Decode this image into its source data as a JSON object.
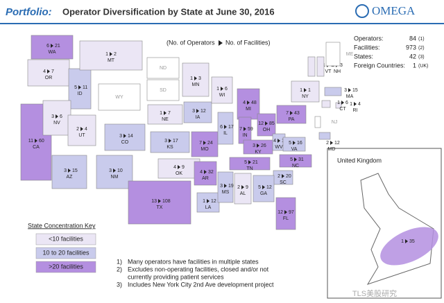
{
  "header": {
    "title_lead": "Portfolio:",
    "title": "Operator Diversification by State at June 30, 2016",
    "logo": "OMEGA"
  },
  "label_key": {
    "left": "(No. of Operators",
    "right": "No. of Facilities)"
  },
  "stats": [
    {
      "label": "Operators:",
      "value": "84",
      "note": "(1)"
    },
    {
      "label": "Facilities:",
      "value": "973",
      "note": "(2)"
    },
    {
      "label": "States:",
      "value": "42",
      "note": "(3)"
    },
    {
      "label": "Foreign Countries:",
      "value": "1",
      "note": "(UK)"
    }
  ],
  "states": [
    {
      "abbr": "WA",
      "operators": 6,
      "facilities": 21,
      "color": "#b48fe0"
    },
    {
      "abbr": "OR",
      "operators": 4,
      "facilities": 7,
      "color": "#ebe6f5"
    },
    {
      "abbr": "CA",
      "operators": 11,
      "facilities": 60,
      "color": "#b48fe0"
    },
    {
      "abbr": "ID",
      "operators": 5,
      "facilities": 11,
      "color": "#c9cbec"
    },
    {
      "abbr": "NV",
      "operators": 3,
      "facilities": 6,
      "color": "#ebe6f5"
    },
    {
      "abbr": "MT",
      "operators": 1,
      "facilities": 2,
      "color": "#ebe6f5"
    },
    {
      "abbr": "WY",
      "color": "#ffffff"
    },
    {
      "abbr": "UT",
      "operators": 2,
      "facilities": 4,
      "color": "#ebe6f5"
    },
    {
      "abbr": "AZ",
      "operators": 3,
      "facilities": 15,
      "color": "#c9cbec"
    },
    {
      "abbr": "CO",
      "operators": 3,
      "facilities": 14,
      "color": "#c9cbec"
    },
    {
      "abbr": "NM",
      "operators": 3,
      "facilities": 10,
      "color": "#c9cbec"
    },
    {
      "abbr": "ND",
      "color": "#ffffff"
    },
    {
      "abbr": "SD",
      "color": "#ffffff"
    },
    {
      "abbr": "NE",
      "operators": 1,
      "facilities": 7,
      "color": "#ebe6f5"
    },
    {
      "abbr": "KS",
      "operators": 3,
      "facilities": 17,
      "color": "#c9cbec"
    },
    {
      "abbr": "OK",
      "operators": 4,
      "facilities": 9,
      "color": "#ebe6f5"
    },
    {
      "abbr": "TX",
      "operators": 13,
      "facilities": 108,
      "color": "#b48fe0"
    },
    {
      "abbr": "MN",
      "operators": 1,
      "facilities": 3,
      "color": "#ebe6f5"
    },
    {
      "abbr": "IA",
      "operators": 3,
      "facilities": 12,
      "color": "#c9cbec"
    },
    {
      "abbr": "MO",
      "operators": 7,
      "facilities": 24,
      "color": "#b48fe0"
    },
    {
      "abbr": "AR",
      "operators": 4,
      "facilities": 32,
      "color": "#b48fe0"
    },
    {
      "abbr": "LA",
      "operators": 1,
      "facilities": 12,
      "color": "#c9cbec"
    },
    {
      "abbr": "WI",
      "operators": 1,
      "facilities": 6,
      "color": "#ebe6f5"
    },
    {
      "abbr": "IL",
      "operators": 6,
      "facilities": 17,
      "color": "#c9cbec"
    },
    {
      "abbr": "MS",
      "operators": 3,
      "facilities": 19,
      "color": "#c9cbec"
    },
    {
      "abbr": "AL",
      "operators": 2,
      "facilities": 9,
      "color": "#ebe6f5"
    },
    {
      "abbr": "MI",
      "operators": 4,
      "facilities": 48,
      "color": "#b48fe0"
    },
    {
      "abbr": "IN",
      "operators": 7,
      "facilities": 59,
      "color": "#b48fe0"
    },
    {
      "abbr": "KY",
      "operators": 3,
      "facilities": 26,
      "color": "#b48fe0"
    },
    {
      "abbr": "TN",
      "operators": 5,
      "facilities": 21,
      "color": "#b48fe0"
    },
    {
      "abbr": "OH",
      "operators": 12,
      "facilities": 85,
      "color": "#b48fe0"
    },
    {
      "abbr": "WV",
      "operators": 4,
      "facilities": 11,
      "color": "#c9cbec"
    },
    {
      "abbr": "VA",
      "operators": 5,
      "facilities": 16,
      "color": "#c9cbec"
    },
    {
      "abbr": "NC",
      "operators": 5,
      "facilities": 31,
      "color": "#b48fe0"
    },
    {
      "abbr": "SC",
      "operators": 2,
      "facilities": 20,
      "color": "#c9cbec"
    },
    {
      "abbr": "GA",
      "operators": 5,
      "facilities": 12,
      "color": "#c9cbec"
    },
    {
      "abbr": "FL",
      "operators": 12,
      "facilities": 97,
      "color": "#b48fe0"
    },
    {
      "abbr": "PA",
      "operators": 7,
      "facilities": 43,
      "color": "#b48fe0"
    },
    {
      "abbr": "NY",
      "operators": 1,
      "facilities": 1,
      "color": "#ebe6f5"
    },
    {
      "abbr": "VT",
      "operators": 1,
      "facilities": 1,
      "color": "#ebe6f5"
    },
    {
      "abbr": "NH",
      "operators": 1,
      "facilities": 3,
      "color": "#ebe6f5"
    },
    {
      "abbr": "ME",
      "color": "#ffffff"
    },
    {
      "abbr": "MA",
      "operators": 3,
      "facilities": 15,
      "color": "#c9cbec"
    },
    {
      "abbr": "RI",
      "operators": 1,
      "facilities": 4,
      "color": "#ebe6f5"
    },
    {
      "abbr": "CT",
      "operators": 1,
      "facilities": 6,
      "color": "#ebe6f5"
    },
    {
      "abbr": "NJ",
      "color": "#ffffff"
    },
    {
      "abbr": "MD",
      "operators": 2,
      "facilities": 12,
      "color": "#c9cbec"
    }
  ],
  "uk": {
    "name": "United Kingdom",
    "operators": 1,
    "facilities": 35,
    "color": "#b48fe0"
  },
  "key": {
    "title": "State Concentration Key",
    "items": [
      {
        "label": "<10 facilities",
        "color": "#ebe6f5"
      },
      {
        "label": "10 to 20 facilities",
        "color": "#c9cbec"
      },
      {
        "label": ">20 facilities",
        "color": "#b48fe0"
      }
    ]
  },
  "footnotes": [
    {
      "num": "1)",
      "lines": [
        "Many operators have facilities in multiple states"
      ]
    },
    {
      "num": "2)",
      "lines": [
        "Excludes non-operating facilities, closed and/or not",
        "currently providing patient services"
      ]
    },
    {
      "num": "3)",
      "lines": [
        "Includes New York City 2nd Ave development project"
      ]
    }
  ],
  "watermark": "TLS美股研究"
}
